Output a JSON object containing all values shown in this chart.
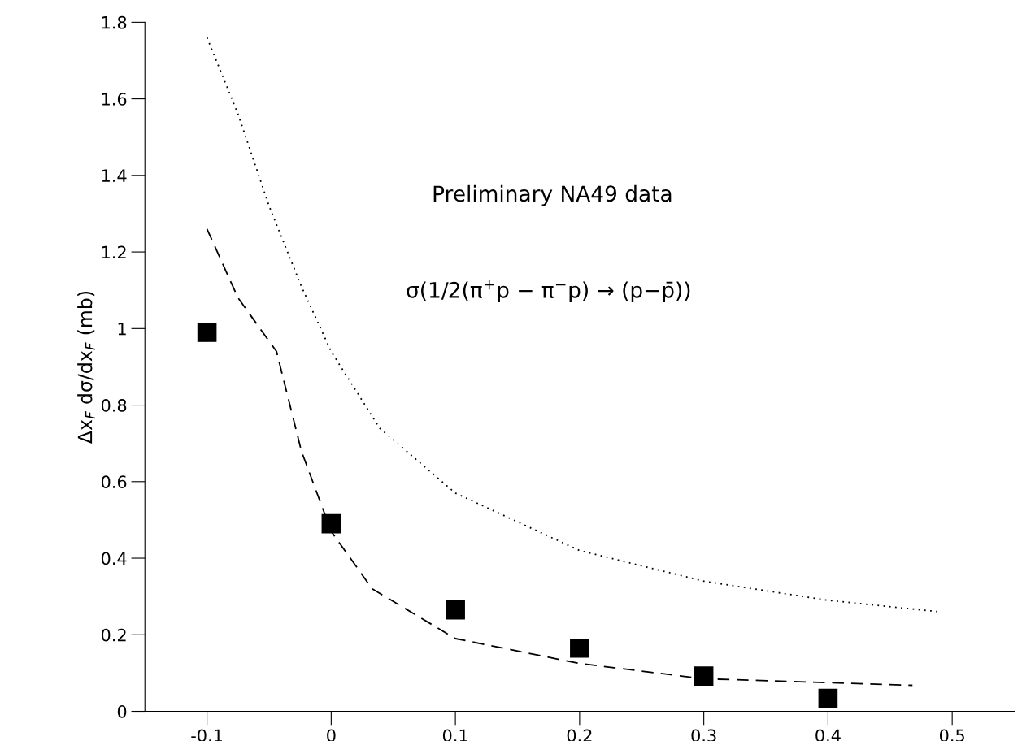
{
  "chart_data": {
    "type": "line",
    "ylabel": "Δx$_{F}$ dσ/dx$_{F}$ (mb)",
    "annotations": [
      "Preliminary NA49 data",
      "σ(1/2(π$^{+}$p − π$^{−}$p) → (p−p̄))"
    ],
    "xlim": [
      -0.15,
      0.55
    ],
    "ylim": [
      0,
      1.8
    ],
    "xticks": [
      -0.1,
      0,
      0.1,
      0.2,
      0.3,
      0.4,
      0.5
    ],
    "yticks": [
      0,
      0.2,
      0.4,
      0.6,
      0.8,
      1,
      1.2,
      1.4,
      1.6,
      1.8
    ],
    "grid": false,
    "legend": false,
    "series": [
      {
        "type": "scatter",
        "color": "#000000",
        "marker": "square",
        "x": [
          -0.1,
          0,
          0.1,
          0.2,
          0.3,
          0.4
        ],
        "values": [
          0.99,
          0.49,
          0.265,
          0.165,
          0.092,
          0.034
        ]
      },
      {
        "color": "#000000",
        "marker": "none",
        "line_style": "dashed",
        "x": [
          -0.1,
          -0.075,
          -0.044,
          -0.024,
          0,
          0.033,
          0.1,
          0.2,
          0.3,
          0.4,
          0.468
        ],
        "values": [
          1.26,
          1.08,
          0.94,
          0.68,
          0.47,
          0.32,
          0.19,
          0.125,
          0.085,
          0.075,
          0.068
        ]
      },
      {
        "color": "#000000",
        "marker": "none",
        "line_style": "dotted",
        "x": [
          -0.1,
          -0.075,
          -0.05,
          -0.024,
          0,
          0.039,
          0.1,
          0.2,
          0.3,
          0.4,
          0.49
        ],
        "values": [
          1.76,
          1.56,
          1.32,
          1.11,
          0.94,
          0.74,
          0.57,
          0.42,
          0.34,
          0.29,
          0.26
        ]
      }
    ]
  }
}
